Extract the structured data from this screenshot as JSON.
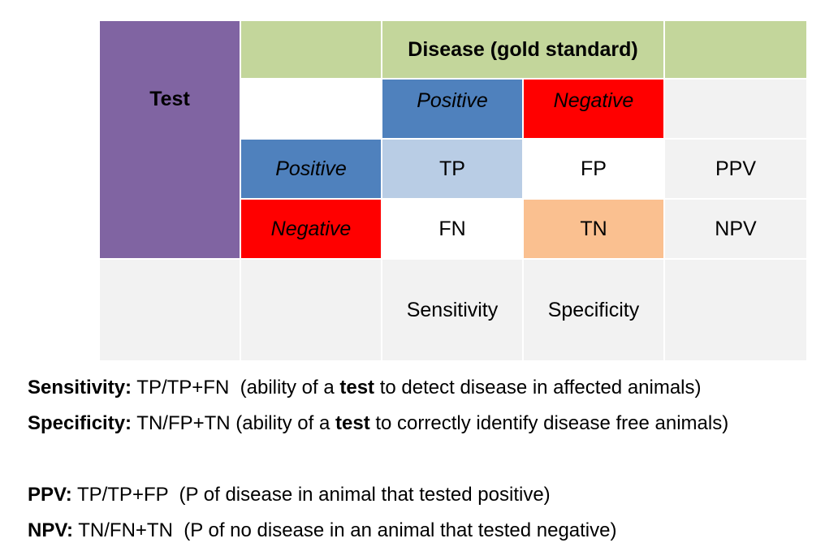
{
  "colors": {
    "purple": "#8064a2",
    "green": "#c3d69b",
    "blue": "#4f81bd",
    "light_blue": "#b9cde5",
    "red": "#ff0000",
    "orange": "#fac090",
    "light_gray": "#f2f2f2"
  },
  "table": {
    "test_header": "Test",
    "disease_header": "Disease (gold standard)",
    "col_positive": "Positive",
    "col_negative": "Negative",
    "row_positive": "Positive",
    "row_negative": "Negative",
    "tp": "TP",
    "fp": "FP",
    "fn": "FN",
    "tn": "TN",
    "ppv": "PPV",
    "npv": "NPV",
    "sensitivity": "Sensitivity",
    "specificity": "Specificity"
  },
  "notes": {
    "sensitivity": {
      "term": "Sensitivity:",
      "formula": "TP/TP+FN  (ability of a ",
      "emphasis": "test",
      "rest": " to detect disease in affected animals)"
    },
    "specificity": {
      "term": "Specificity:",
      "formula": "TN/FP+TN (ability of a ",
      "emphasis": "test",
      "rest": " to correctly identify disease free animals)"
    },
    "ppv": {
      "term": "PPV:",
      "text": "TP/TP+FP  (P of disease in animal that tested positive)"
    },
    "npv": {
      "term": "NPV:",
      "text": "TN/FN+TN  (P of no disease in an animal that tested negative)"
    }
  }
}
